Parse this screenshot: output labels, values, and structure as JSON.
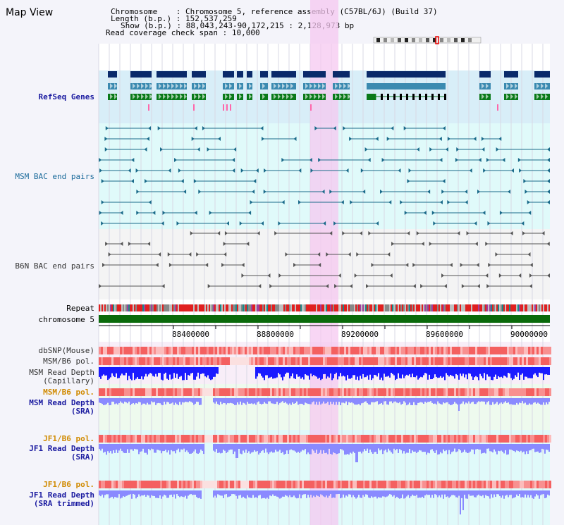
{
  "header": {
    "title": "Map View",
    "chromosome_key": "Chromosome",
    "chromosome_value": "Chromosome 5, reference assembly (C57BL/6J) (Build 37)",
    "length_key": "Length (b.p.)",
    "length_value": "152,537,259",
    "show_key": "Show (b.p.)",
    "show_value": "88,043,243-90,172,215 : 2,128,973 bp",
    "coverage_key": "Read coverage check span",
    "coverage_value": "10,000"
  },
  "tracks": {
    "refseq": "RefSeq Genes",
    "msm_bac": "MSM BAC end pairs",
    "b6n_bac": "B6N BAC end pairs",
    "repeat": "Repeat",
    "chromosome": "chromosome 5",
    "dbsnp": "dbSNP(Mouse)",
    "msm_b6_pol_1": "MSM/B6 pol.",
    "msm_read_depth_cap_1": "MSM Read Depth",
    "msm_read_depth_cap_2": "(Capillary)",
    "msm_b6_pol_2": "MSM/B6 pol.",
    "msm_read_depth_sra_1": "MSM Read Depth",
    "msm_read_depth_sra_2": "(SRA)",
    "jf1_b6_pol_1": "JF1/B6 pol.",
    "jf1_read_depth_sra_1": "JF1 Read Depth",
    "jf1_read_depth_sra_2": "(SRA)",
    "jf1_b6_pol_2": "JF1/B6 pol.",
    "jf1_read_depth_trim_1": "JF1 Read Depth",
    "jf1_read_depth_trim_2": "(SRA trimmed)"
  },
  "ruler": {
    "ticks": [
      "88400000",
      "88800000",
      "89200000",
      "89600000",
      "90000000"
    ]
  },
  "colors": {
    "refseq_dark": "#0a2a6a",
    "refseq_mid": "#3a8ab0",
    "refseq_green": "#0a7a1a",
    "highlight": "#f5c8f0",
    "bac_teal": "#1a6a8a",
    "bac_grey": "#555555",
    "chromosome_green": "#0a6a0a",
    "depth_blue": "#1a1aff",
    "depth_light": "#8a8aff"
  }
}
